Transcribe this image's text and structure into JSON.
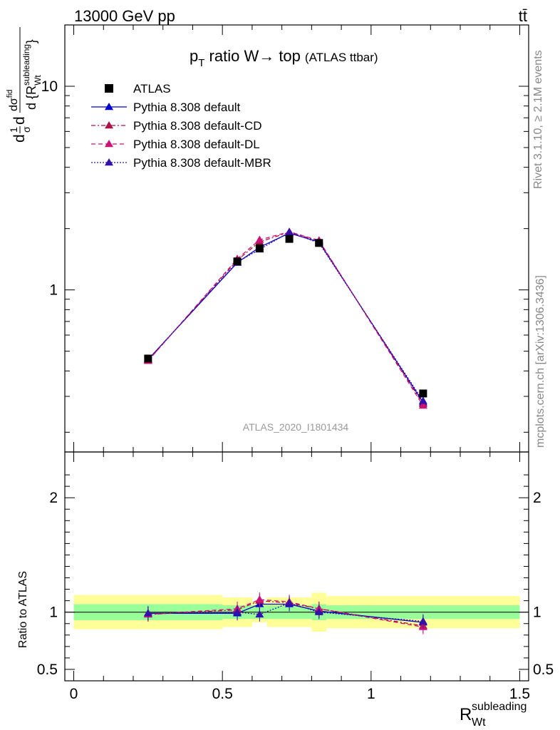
{
  "header": {
    "energy_label": "13000 GeV pp",
    "process_label": "tt̄"
  },
  "side_labels": {
    "rivet": "Rivet 3.1.10, ≥ 2.1M events",
    "site": "mcplots.cern.ch [arXiv:1306.3436]"
  },
  "colors": {
    "data": "#000000",
    "default": "#0000cc",
    "default_cd": "#aa1144",
    "default_dl": "#cc1177",
    "default_mbr": "#3311aa",
    "band_inner": "#99ff99",
    "band_outer": "#ffff99"
  },
  "chart_data": {
    "type": "line",
    "title_main": "p",
    "title_sub": "T",
    "title_rest": " ratio W→ top",
    "title_small": "(ATLAS ttbar)",
    "analysis_label": "ATLAS_2020_I1801434",
    "ylabel_main_parts": [
      "d",
      "1",
      "σ",
      "d",
      "dσ",
      "fid",
      "d {R",
      "subleading",
      "Wt",
      "}"
    ],
    "ylabel_ratio": "Ratio to ATLAS",
    "xlabel_main": "R",
    "xlabel_sub": "Wt",
    "xlabel_sup": "subleading",
    "xlim": [
      -0.03,
      1.53
    ],
    "ylim_main_log": [
      0.16,
      20
    ],
    "ylim_ratio": [
      0.4,
      2.4
    ],
    "x_ticks": [
      {
        "value": 0,
        "label": "0"
      },
      {
        "value": 0.5,
        "label": "0.5"
      },
      {
        "value": 1,
        "label": "1"
      },
      {
        "value": 1.5,
        "label": "1.5"
      }
    ],
    "y_ticks_main": [
      {
        "value": 1,
        "label": "1"
      },
      {
        "value": 10,
        "label": "10"
      }
    ],
    "y_ticks_ratio": [
      {
        "value": 0.5,
        "label": "0.5"
      },
      {
        "value": 1,
        "label": "1"
      },
      {
        "value": 2,
        "label": "2"
      }
    ],
    "bin_edges": [
      0.0,
      0.5,
      0.6,
      0.65,
      0.8,
      0.85,
      1.5
    ],
    "data": {
      "name": "ATLAS",
      "x": [
        0.25,
        0.55,
        0.625,
        0.725,
        0.825,
        1.175
      ],
      "y": [
        0.46,
        1.38,
        1.6,
        1.78,
        1.7,
        0.31
      ]
    },
    "series": [
      {
        "name": "Pythia 8.308 default",
        "key": "default",
        "style": "solid",
        "y": [
          0.455,
          1.36,
          1.62,
          1.9,
          1.72,
          0.28
        ],
        "ratio": [
          0.99,
          0.99,
          1.07,
          1.07,
          1.01,
          0.91
        ]
      },
      {
        "name": "Pythia 8.308 default-CD",
        "key": "default_cd",
        "style": "dashdot",
        "y": [
          0.45,
          1.4,
          1.72,
          1.92,
          1.74,
          0.275
        ],
        "ratio": [
          0.98,
          1.02,
          1.1,
          1.08,
          1.03,
          0.88
        ]
      },
      {
        "name": "Pythia 8.308 default-DL",
        "key": "default_dl",
        "style": "dashed",
        "y": [
          0.448,
          1.42,
          1.76,
          1.93,
          1.75,
          0.27
        ],
        "ratio": [
          0.98,
          1.03,
          1.11,
          1.09,
          1.03,
          0.87
        ]
      },
      {
        "name": "Pythia 8.308 default-MBR",
        "key": "default_mbr",
        "style": "dotted",
        "y": [
          0.455,
          1.37,
          1.58,
          1.92,
          1.7,
          0.285
        ],
        "ratio": [
          0.99,
          1.0,
          0.98,
          1.08,
          1.0,
          0.92
        ]
      }
    ],
    "band_inner": [
      0.07,
      0.06,
      0.06,
      0.06,
      0.07,
      0.06
    ],
    "band_outer": [
      0.15,
      0.13,
      0.09,
      0.13,
      0.17,
      0.14
    ],
    "grid": false,
    "legend_position": "top-left"
  }
}
